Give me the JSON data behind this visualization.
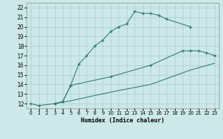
{
  "xlabel": "Humidex (Indice chaleur)",
  "bg_color": "#cce8e8",
  "grid_color": "#b0d0d0",
  "line_color": "#2e7d6e",
  "xlim": [
    -0.5,
    23.5
  ],
  "ylim": [
    11.5,
    22.5
  ],
  "xticks": [
    0,
    1,
    2,
    3,
    4,
    5,
    6,
    7,
    8,
    9,
    10,
    11,
    12,
    13,
    14,
    15,
    16,
    17,
    18,
    19,
    20,
    21,
    22,
    23
  ],
  "yticks": [
    12,
    13,
    14,
    15,
    16,
    17,
    18,
    19,
    20,
    21,
    22
  ],
  "line1_x": [
    0,
    1,
    3,
    4,
    5,
    6,
    7,
    8,
    9,
    10,
    11,
    12,
    13,
    14,
    15,
    16,
    17,
    20
  ],
  "line1_y": [
    12,
    11.8,
    12,
    12.2,
    13.9,
    16.1,
    17.0,
    18.0,
    18.6,
    19.5,
    20.0,
    20.3,
    21.6,
    21.4,
    21.4,
    21.2,
    20.8,
    20.0
  ],
  "line2_x": [
    3,
    4,
    5,
    10,
    15,
    19,
    20,
    21,
    22,
    23
  ],
  "line2_y": [
    12,
    12.2,
    13.9,
    14.8,
    16.0,
    17.5,
    17.5,
    17.5,
    17.3,
    17.0
  ],
  "line3_x": [
    3,
    5,
    10,
    15,
    20,
    23
  ],
  "line3_y": [
    12,
    12.3,
    13.2,
    14.0,
    15.5,
    16.2
  ]
}
